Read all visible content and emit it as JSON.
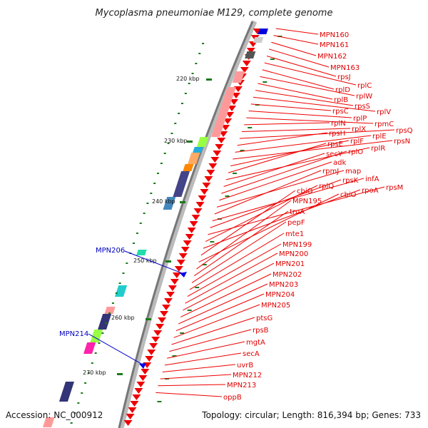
{
  "title": "Mycoplasma pneumoniae M129, complete genome",
  "accession": "Accession: NC_000912",
  "topology": "Topology: circular; Length: 816,394 bp; Genes: 733",
  "scale_labels": [
    "220 kbp",
    "230 kbp",
    "240 kbp",
    "250 kbp",
    "260 kbp",
    "270 kbp"
  ],
  "genes_red": [
    "MPN160",
    "MPN161",
    "MPN162",
    "MPN163",
    "rpsJ",
    "rplC",
    "rplD",
    "rplW",
    "rplB",
    "rpsS",
    "rplV",
    "rpsC",
    "rplP",
    "rpmC",
    "rplN",
    "rplX",
    "rpsQ",
    "rpsH",
    "rplE",
    "rpsN",
    "rplF",
    "rpsE",
    "rplR",
    "secY",
    "rplO",
    "adk",
    "map",
    "rpmJ",
    "infA",
    "rpsK",
    "rpsM",
    "rplQ",
    "rpoA",
    "cbiO",
    "cbiO",
    "MPN195",
    "truA",
    "pepF",
    "mte1",
    "MPN199",
    "MPN200",
    "MPN201",
    "MPN202",
    "MPN203",
    "MPN204",
    "MPN205",
    "ptsG",
    "rpsB",
    "mgtA",
    "secA",
    "uvrB",
    "MPN212",
    "MPN213",
    "oppB"
  ],
  "genes_blue": [
    "MPN206",
    "MPN214"
  ],
  "colors": {
    "red_gene": "#ee0000",
    "blue_gene": "#0000cc",
    "backbone": "#888888",
    "tick_green": "#1a7a1a"
  }
}
